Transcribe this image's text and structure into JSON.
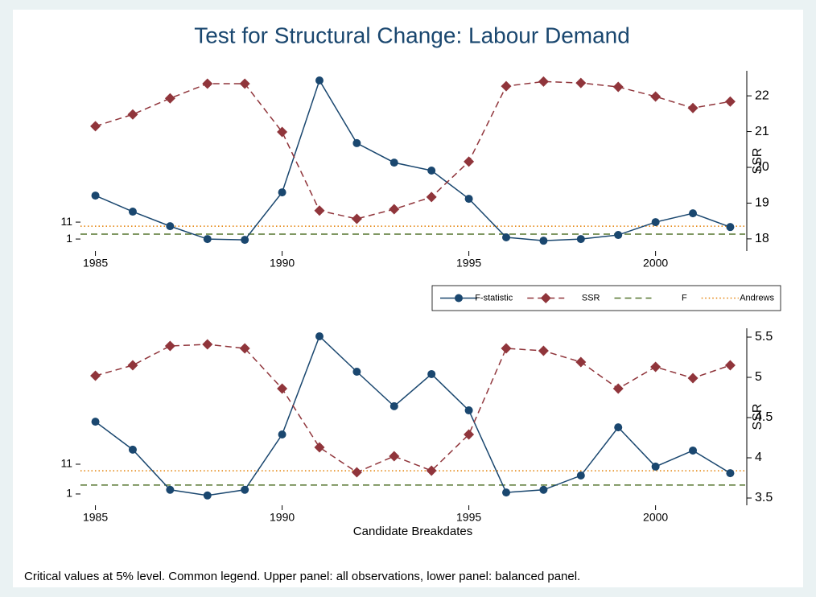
{
  "title": "Test for Structural Change: Labour Demand",
  "note": "Critical values at 5% level. Common legend. Upper panel: all observations, lower panel: balanced panel.",
  "chart_data": [
    {
      "type": "line",
      "x": [
        1985,
        1986,
        1987,
        1988,
        1989,
        1990,
        1991,
        1992,
        1993,
        1994,
        1995,
        1996,
        1997,
        1998,
        1999,
        2000,
        2001,
        2002
      ],
      "xlim": [
        1984.6,
        2002.4
      ],
      "xticks": [
        1985,
        1990,
        1995,
        2000
      ],
      "ylim": [
        -6.1,
        100.5
      ],
      "yticks": [
        1,
        11
      ],
      "y2lim": [
        17.66,
        22.7
      ],
      "y2ticks": [
        18,
        19,
        20,
        21,
        22
      ],
      "y2label": "SSR",
      "legend": "bottom-right",
      "series": [
        {
          "name": "F-statistic",
          "color": "#1a476f",
          "marker": "circle",
          "dash": "solid",
          "values": [
            26.7,
            17.2,
            8.6,
            1,
            0.5,
            28.6,
            94.8,
            57.7,
            46.2,
            41.5,
            24.8,
            2,
            0,
            1,
            3.4,
            11,
            16.2,
            8.1
          ]
        },
        {
          "name": "SSR",
          "color": "#90353b",
          "marker": "diamond",
          "dash": "dashed",
          "axis": "y2",
          "values": [
            21.15,
            21.48,
            21.93,
            22.34,
            22.34,
            20.99,
            18.79,
            18.56,
            18.83,
            19.17,
            20.16,
            22.27,
            22.4,
            22.36,
            22.25,
            21.98,
            21.66,
            21.84
          ]
        }
      ],
      "reference_lines": [
        {
          "name": "F",
          "value": 3.9,
          "color": "#55752f",
          "dash": "dashed"
        },
        {
          "name": "Andrews",
          "value": 8.6,
          "color": "#e37e00",
          "dash": "dotted"
        }
      ]
    },
    {
      "type": "line",
      "x": [
        1985,
        1986,
        1987,
        1988,
        1989,
        1990,
        1991,
        1992,
        1993,
        1994,
        1995,
        1996,
        1997,
        1998,
        1999,
        2000,
        2001,
        2002
      ],
      "xlim": [
        1984.6,
        2002.4
      ],
      "xticks": [
        1985,
        1990,
        1995,
        2000
      ],
      "xlabel": "Candidate Breakdates",
      "ylim": [
        -2.8,
        56.7
      ],
      "yticks": [
        1,
        11
      ],
      "y2lim": [
        3.41,
        5.61
      ],
      "y2ticks": [
        3.5,
        4,
        4.5,
        5,
        5.5
      ],
      "y2label": "SSR",
      "series": [
        {
          "color": "#1a476f",
          "marker": "circle",
          "dash": "solid",
          "values": [
            25.3,
            15.9,
            2.4,
            0.5,
            2.4,
            21,
            54,
            42.1,
            30.5,
            41.3,
            29.1,
            1.5,
            2.4,
            7.2,
            23.4,
            10.2,
            15.6,
            8
          ]
        },
        {
          "color": "#90353b",
          "marker": "diamond",
          "dash": "dashed",
          "axis": "y2",
          "values": [
            5.02,
            5.15,
            5.39,
            5.41,
            5.36,
            4.86,
            4.13,
            3.82,
            4.02,
            3.84,
            4.29,
            5.36,
            5.33,
            5.19,
            4.86,
            5.13,
            4.99,
            5.15
          ]
        }
      ],
      "reference_lines": [
        {
          "value": 4.0,
          "color": "#55752f",
          "dash": "dashed"
        },
        {
          "value": 8.8,
          "color": "#e37e00",
          "dash": "dotted"
        }
      ]
    }
  ]
}
